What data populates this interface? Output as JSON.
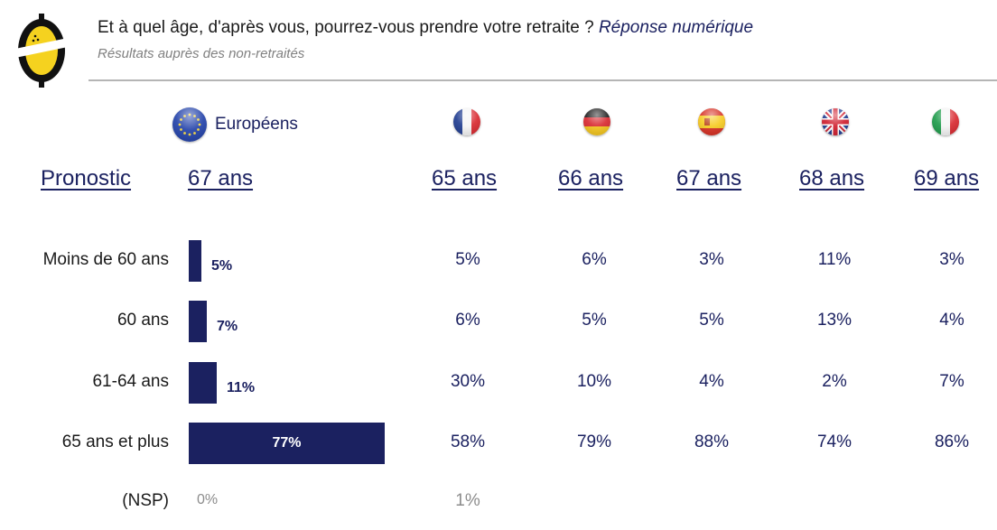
{
  "header": {
    "title_main": "Et à quel âge, d'après vous, pourrez-vous prendre votre retraite ? ",
    "title_note": "Réponse numérique",
    "subtitle": "Résultats auprès des non-retraités"
  },
  "brand": {
    "logo_icon": "lemon-logo-icon",
    "primary_color": "#1b2160",
    "accent_yellow": "#f5d21f"
  },
  "chart_data": {
    "type": "table",
    "title": "Et à quel âge, d'après vous, pourrez-vous prendre votre retraite ? Réponse numérique",
    "subtitle": "Résultats auprès des non-retraités",
    "row_header": "Pronostic",
    "categories": [
      "Moins de 60 ans",
      "60 ans",
      "61-64 ans",
      "65 ans et plus",
      "(NSP)"
    ],
    "series": [
      {
        "name": "Européens",
        "flag": "eu-flag-icon",
        "pronostic": "67 ans",
        "values": [
          5,
          7,
          11,
          77,
          0
        ],
        "labels": [
          "5%",
          "7%",
          "11%",
          "77%",
          "0%"
        ],
        "rendered_as": "bar"
      },
      {
        "name": "France",
        "flag": "france-flag-icon",
        "pronostic": "65 ans",
        "values": [
          5,
          6,
          30,
          58,
          1
        ],
        "labels": [
          "5%",
          "6%",
          "30%",
          "58%",
          "1%"
        ]
      },
      {
        "name": "Allemagne",
        "flag": "germany-flag-icon",
        "pronostic": "66 ans",
        "values": [
          6,
          5,
          10,
          79,
          null
        ],
        "labels": [
          "6%",
          "5%",
          "10%",
          "79%",
          ""
        ]
      },
      {
        "name": "Espagne",
        "flag": "spain-flag-icon",
        "pronostic": "67 ans",
        "values": [
          3,
          5,
          4,
          88,
          null
        ],
        "labels": [
          "3%",
          "5%",
          "4%",
          "88%",
          ""
        ]
      },
      {
        "name": "Royaume-Uni",
        "flag": "uk-flag-icon",
        "pronostic": "68 ans",
        "values": [
          11,
          13,
          2,
          74,
          null
        ],
        "labels": [
          "11%",
          "13%",
          "2%",
          "74%",
          ""
        ]
      },
      {
        "name": "Italie",
        "flag": "italy-flag-icon",
        "pronostic": "69 ans",
        "values": [
          3,
          4,
          7,
          86,
          null
        ],
        "labels": [
          "3%",
          "4%",
          "7%",
          "86%",
          ""
        ]
      }
    ],
    "unit": "%",
    "xlim": [
      0,
      100
    ],
    "legend": "none",
    "grid": false
  },
  "labels": {
    "europeans": "Européens",
    "pronostic": "Pronostic"
  }
}
